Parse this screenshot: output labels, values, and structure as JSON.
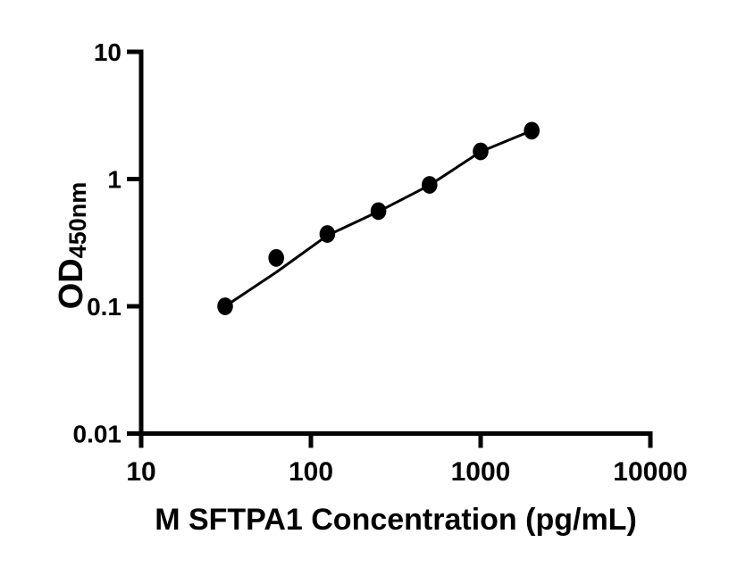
{
  "figure": {
    "background_color": "#ffffff",
    "foreground_color": "#000000"
  },
  "chart_data": {
    "type": "scatter",
    "title": "",
    "xlabel": "M SFTPA1 Concentration (pg/mL)",
    "ylabel_main": "OD",
    "ylabel_subscript": "450nm",
    "x_scale": "log",
    "y_scale": "log",
    "xlim": [
      10,
      10000
    ],
    "ylim": [
      0.01,
      10
    ],
    "x_ticks": [
      10,
      100,
      1000,
      10000
    ],
    "x_tick_labels": [
      "10",
      "100",
      "1000",
      "10000"
    ],
    "y_ticks": [
      10,
      1,
      0.1,
      0.01
    ],
    "y_tick_labels": [
      "10",
      "1",
      "0.1",
      "0.01"
    ],
    "grid": false,
    "legend": "none",
    "marker": {
      "shape": "filled-circle",
      "color": "#000000"
    },
    "line_color": "#000000",
    "series": [
      {
        "name": "standard-points",
        "type": "scatter",
        "x": [
          31.25,
          62.5,
          125,
          250,
          500,
          1000,
          2000
        ],
        "y": [
          0.1,
          0.24,
          0.37,
          0.56,
          0.9,
          1.65,
          2.4
        ]
      },
      {
        "name": "fit-line",
        "type": "line",
        "x": [
          31.25,
          62.5,
          125,
          250,
          500,
          1000,
          2000
        ],
        "y": [
          0.1,
          0.185,
          0.36,
          0.555,
          0.895,
          1.64,
          2.4
        ]
      }
    ]
  }
}
